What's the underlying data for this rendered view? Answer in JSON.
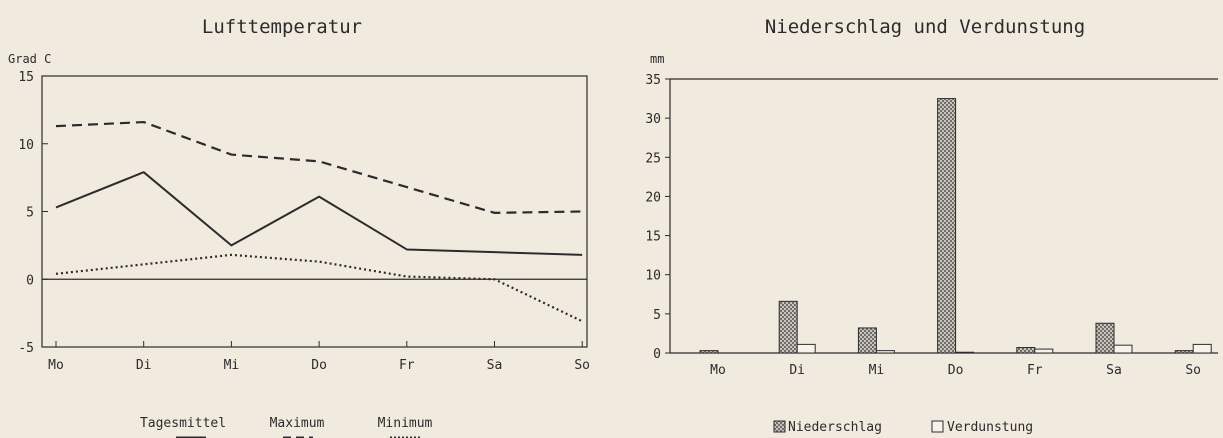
{
  "chart_data": [
    {
      "type": "line",
      "title": "Lufttemperatur",
      "ylabel": "Grad C",
      "categories": [
        "Mo",
        "Di",
        "Mi",
        "Do",
        "Fr",
        "Sa",
        "So"
      ],
      "ylim": [
        -5,
        15
      ],
      "yticks": [
        15,
        10,
        5,
        0,
        -5
      ],
      "legend_position": "bottom-center",
      "series": [
        {
          "name": "Tagesmittel",
          "values": [
            5.3,
            7.9,
            2.5,
            6.1,
            2.2,
            2.0,
            1.8
          ]
        },
        {
          "name": "Maximum",
          "values": [
            11.3,
            11.6,
            9.2,
            8.7,
            6.8,
            4.9,
            5.0
          ]
        },
        {
          "name": "Minimum",
          "values": [
            0.4,
            1.1,
            1.8,
            1.3,
            0.2,
            0.0,
            -3.1
          ]
        }
      ]
    },
    {
      "type": "bar",
      "title": "Niederschlag und Verdunstung",
      "ylabel": "mm",
      "categories": [
        "Mo",
        "Di",
        "Mi",
        "Do",
        "Fr",
        "Sa",
        "So"
      ],
      "ylim": [
        0,
        35
      ],
      "yticks": [
        35,
        30,
        25,
        20,
        15,
        10,
        5,
        0
      ],
      "legend_position": "bottom-center",
      "series": [
        {
          "name": "Niederschlag",
          "values": [
            0.3,
            6.6,
            3.2,
            32.5,
            0.7,
            3.8,
            0.3
          ]
        },
        {
          "name": "Verdunstung",
          "values": [
            0.0,
            1.1,
            0.3,
            0.1,
            0.5,
            1.0,
            1.1
          ]
        }
      ]
    }
  ]
}
